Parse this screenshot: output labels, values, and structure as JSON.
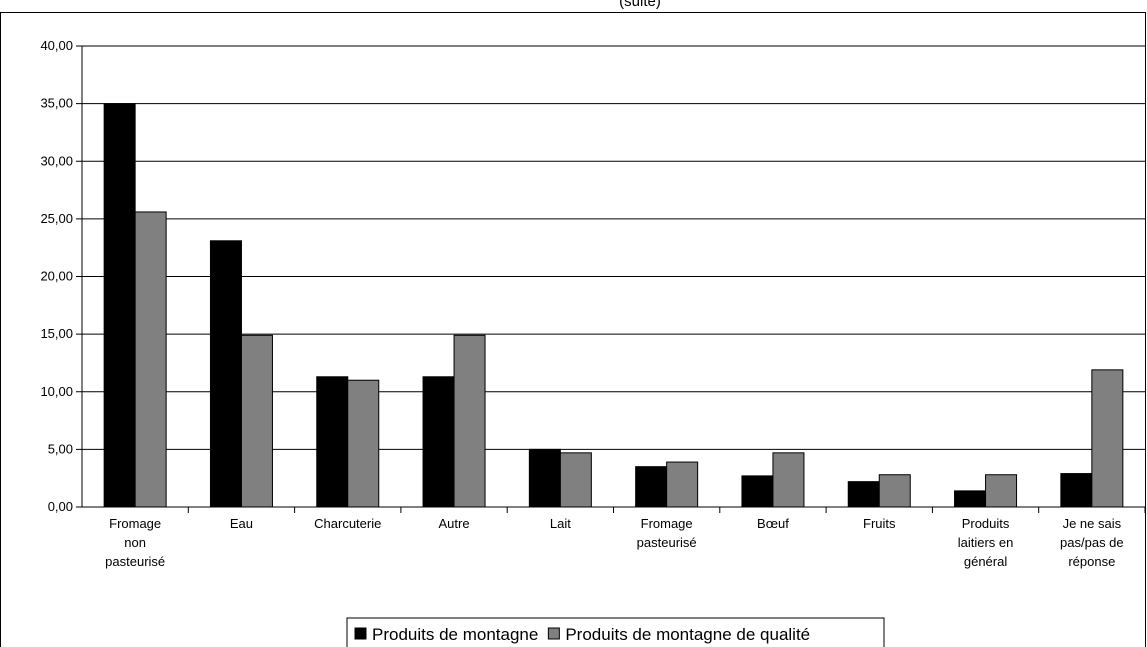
{
  "chart_data": {
    "type": "bar",
    "title": "(suite)",
    "categories": [
      [
        "Fromage",
        "non",
        "pasteurisé"
      ],
      [
        "Eau"
      ],
      [
        "Charcuterie"
      ],
      [
        "Autre"
      ],
      [
        "Lait"
      ],
      [
        "Fromage",
        "pasteurisé"
      ],
      [
        "Bœuf"
      ],
      [
        "Fruits"
      ],
      [
        "Produits",
        "laitiers en",
        "général"
      ],
      [
        "Je ne sais",
        "pas/pas de",
        "réponse"
      ]
    ],
    "series": [
      {
        "name": "Produits de montagne",
        "color": "#000000",
        "values": [
          35.0,
          23.1,
          11.3,
          11.3,
          5.0,
          3.5,
          2.7,
          2.2,
          1.4,
          2.9
        ]
      },
      {
        "name": "Produits de montagne de qualité",
        "color": "#808080",
        "values": [
          25.6,
          14.9,
          11.0,
          14.9,
          4.7,
          3.9,
          4.7,
          2.8,
          2.8,
          11.9
        ]
      }
    ],
    "yticks": [
      "0,00",
      "5,00",
      "10,00",
      "15,00",
      "20,00",
      "25,00",
      "30,00",
      "35,00",
      "40,00"
    ],
    "ylim": [
      0,
      40
    ],
    "grid": true,
    "legend_position": "bottom-center"
  }
}
